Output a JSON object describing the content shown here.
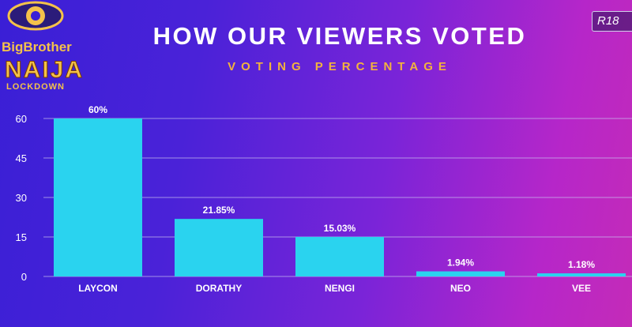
{
  "logo": {
    "line1": "BigBrother",
    "line2": "NAIJA",
    "line3": "LOCKDOWN"
  },
  "rating_badge": "R18",
  "colors": {
    "bar": "#2ad3ef",
    "accent": "#f3b33d",
    "text": "#ffffff"
  },
  "chart_data": {
    "type": "bar",
    "title": "HOW OUR VIEWERS VOTED",
    "subtitle": "VOTING PERCENTAGE",
    "xlabel": "",
    "ylabel": "",
    "ylim": [
      0,
      60
    ],
    "yticks": [
      0,
      15,
      30,
      45,
      60
    ],
    "grid": true,
    "categories": [
      "LAYCON",
      "DORATHY",
      "NENGI",
      "NEO",
      "VEE"
    ],
    "values": [
      60,
      21.85,
      15.03,
      1.94,
      1.18
    ],
    "data_labels": [
      "60%",
      "21.85%",
      "15.03%",
      "1.94%",
      "1.18%"
    ]
  }
}
